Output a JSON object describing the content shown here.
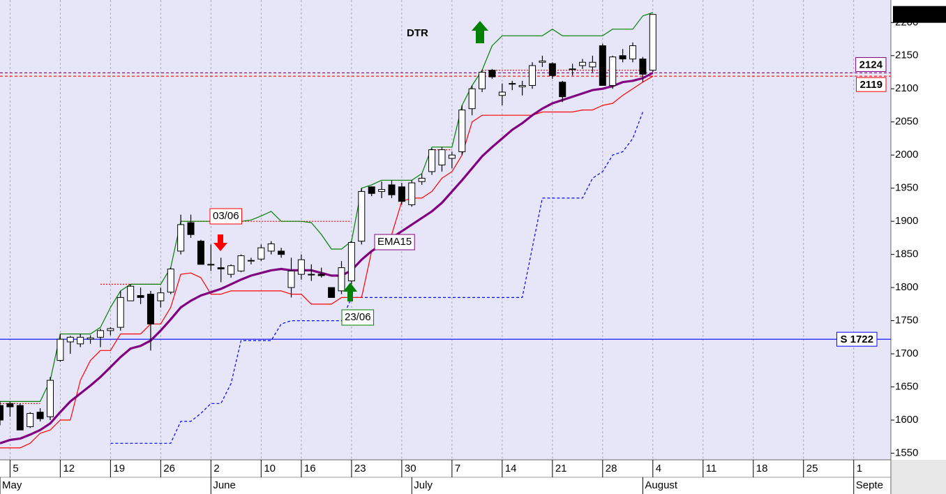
{
  "chart_data": {
    "type": "candlestick",
    "open": [
      1622,
      1625,
      1622,
      1590,
      1612,
      1605,
      1690,
      1718,
      1715,
      1722,
      1725,
      1735,
      1740,
      1780,
      1788,
      1790,
      1780,
      1793,
      1855,
      1898,
      1870,
      1835,
      1830,
      1820,
      1825,
      1840,
      1843,
      1855,
      1855,
      1800,
      1820,
      1820,
      1820,
      1800,
      1795,
      1810,
      1870,
      1952,
      1945,
      1955,
      1952,
      1925,
      1960,
      1975,
      1985,
      1995,
      2005,
      2070,
      2100,
      2128,
      2090,
      2108,
      2103,
      2105,
      2140,
      2138,
      2110,
      2130,
      2135,
      2133,
      2165,
      2105,
      2150,
      2145,
      2145,
      2128
    ],
    "high": [
      1628,
      1628,
      1625,
      1612,
      1618,
      1665,
      1730,
      1727,
      1730,
      1728,
      1738,
      1740,
      1795,
      1805,
      1800,
      1795,
      1800,
      1830,
      1910,
      1910,
      1872,
      1865,
      1845,
      1835,
      1850,
      1845,
      1865,
      1870,
      1860,
      1845,
      1850,
      1835,
      1830,
      1800,
      1840,
      1870,
      1950,
      1953,
      1960,
      1962,
      1958,
      1962,
      1972,
      2010,
      2012,
      2005,
      2075,
      2105,
      2128,
      2130,
      2108,
      2112,
      2112,
      2140,
      2150,
      2140,
      2112,
      2138,
      2145,
      2150,
      2168,
      2150,
      2160,
      2170,
      2148,
      2212.24
    ],
    "low": [
      1592,
      1605,
      1585,
      1588,
      1598,
      1600,
      1688,
      1700,
      1710,
      1715,
      1710,
      1728,
      1735,
      1780,
      1775,
      1705,
      1770,
      1790,
      1850,
      1875,
      1835,
      1825,
      1808,
      1815,
      1823,
      1835,
      1840,
      1850,
      1845,
      1785,
      1812,
      1810,
      1815,
      1785,
      1790,
      1805,
      1865,
      1938,
      1935,
      1935,
      1925,
      1922,
      1955,
      1970,
      1975,
      1980,
      2000,
      2060,
      2095,
      2115,
      2075,
      2098,
      2090,
      2100,
      2133,
      2115,
      2080,
      2120,
      2130,
      2125,
      2105,
      2100,
      2140,
      2140,
      2110,
      2125
    ],
    "close": [
      1600,
      1620,
      1585,
      1610,
      1602,
      1660,
      1722,
      1725,
      1725,
      1724,
      1735,
      1738,
      1785,
      1802,
      1785,
      1745,
      1792,
      1828,
      1895,
      1880,
      1835,
      1835,
      1828,
      1833,
      1848,
      1841,
      1860,
      1866,
      1850,
      1825,
      1842,
      1820,
      1818,
      1785,
      1830,
      1868,
      1945,
      1942,
      1948,
      1940,
      1930,
      1958,
      1965,
      2008,
      2008,
      2000,
      2068,
      2100,
      2125,
      2118,
      2095,
      2108,
      2105,
      2135,
      2142,
      2120,
      2088,
      2130,
      2140,
      2140,
      2105,
      2148,
      2145,
      2165,
      2122,
      2212.24
    ],
    "up_color": "#ffffff",
    "down_color": "#000000",
    "series": [
      {
        "color": "#0000ff",
        "style": "dashed",
        "width": 1.2,
        "values": [
          null,
          null,
          null,
          null,
          null,
          null,
          null,
          null,
          null,
          null,
          null,
          1565,
          1565,
          1565,
          1565,
          1565,
          1565,
          1565,
          1598,
          1598,
          1610,
          1625,
          1625,
          1655,
          1720,
          1720,
          1720,
          1720,
          1745,
          1750,
          1750,
          1750,
          1750,
          1750,
          1750,
          1785,
          1785,
          1785,
          1785,
          1785,
          1785,
          1785,
          1785,
          1785,
          1785,
          1785,
          1785,
          1785,
          1785,
          1785,
          1785,
          1785,
          1785,
          1860,
          1935,
          1935,
          1935,
          1935,
          1935,
          1965,
          1975,
          2000,
          2005,
          2025,
          2065,
          null
        ]
      },
      {
        "color": "#ff0000",
        "style": "dotted",
        "width": 1.2,
        "values": [
          1625,
          1625,
          1625,
          1625,
          1625,
          null,
          null,
          null,
          null,
          null,
          1805,
          1805,
          1805,
          1805,
          1805,
          1805,
          1805,
          null,
          1900,
          1900,
          1900,
          1900,
          1900,
          1900,
          1900,
          1900,
          1900,
          1900,
          1900,
          1900,
          1900,
          1900,
          1900,
          1900,
          1900,
          1900,
          null,
          null,
          null,
          null,
          null,
          null,
          null,
          2008,
          2008,
          2008,
          null,
          null,
          2128,
          2128,
          2128,
          2128,
          2128,
          2128,
          2128,
          2128,
          2128,
          2128,
          2128,
          2128,
          2128,
          2128,
          2128,
          2128,
          2128,
          null
        ]
      },
      {
        "color": "#ff0000",
        "style": "solid",
        "width": 1.2,
        "values": [
          1558,
          1558,
          1558,
          1565,
          1580,
          1585,
          1600,
          1600,
          1660,
          1690,
          1705,
          1705,
          1730,
          1730,
          1730,
          1745,
          1745,
          1770,
          1820,
          1822,
          1815,
          1790,
          1790,
          1795,
          1795,
          1795,
          1795,
          1795,
          1795,
          1790,
          1790,
          1775,
          1775,
          1775,
          1785,
          1785,
          1785,
          1855,
          1860,
          1880,
          1930,
          1935,
          1935,
          1945,
          1965,
          1975,
          2000,
          2050,
          2060,
          2060,
          2060,
          2060,
          2060,
          2060,
          2065,
          2065,
          2065,
          2065,
          2068,
          2068,
          2075,
          2078,
          2090,
          2100,
          2110,
          2119
        ]
      },
      {
        "color": "#008000",
        "style": "solid",
        "width": 1.2,
        "values": [
          1628,
          1628,
          1628,
          1628,
          1628,
          1660,
          1730,
          1730,
          1730,
          1730,
          1740,
          1770,
          1795,
          1805,
          1805,
          1805,
          1805,
          1830,
          1900,
          1900,
          1900,
          1900,
          1900,
          1900,
          1900,
          1902,
          1908,
          1915,
          1900,
          1900,
          1900,
          1898,
          1880,
          1858,
          1858,
          1870,
          1950,
          1955,
          1962,
          1962,
          1962,
          1962,
          1972,
          2012,
          2012,
          2012,
          2075,
          2105,
          2128,
          2165,
          2180,
          2180,
          2180,
          2180,
          2180,
          2190,
          2180,
          2180,
          2180,
          2180,
          2180,
          2190,
          2190,
          2190,
          2210,
          2215
        ]
      },
      {
        "color": "#800080",
        "style": "solid",
        "width": 3.2,
        "values": [
          1565,
          1570,
          1572,
          1578,
          1585,
          1595,
          1612,
          1628,
          1640,
          1652,
          1665,
          1680,
          1695,
          1708,
          1712,
          1720,
          1735,
          1752,
          1770,
          1780,
          1788,
          1793,
          1798,
          1805,
          1812,
          1818,
          1822,
          1826,
          1828,
          1826,
          1826,
          1826,
          1822,
          1818,
          1818,
          1826,
          1842,
          1855,
          1865,
          1875,
          1885,
          1895,
          1905,
          1915,
          1928,
          1945,
          1962,
          1980,
          1998,
          2012,
          2025,
          2038,
          2048,
          2060,
          2070,
          2078,
          2083,
          2088,
          2093,
          2098,
          2100,
          2104,
          2110,
          2112,
          2116,
          2124
        ]
      }
    ],
    "levels": [
      {
        "value": 2124,
        "color": "#800080",
        "style": "dashed"
      },
      {
        "value": 2119,
        "color": "#ff0000",
        "style": "dashed"
      },
      {
        "value": 1722,
        "label": "S 1722",
        "color": "#0000ff",
        "style": "solid"
      }
    ],
    "annotations": [
      {
        "text": "DTR",
        "color": "#008000"
      },
      {
        "text": "03/06",
        "color": "#ff0000"
      },
      {
        "text": "23/06",
        "color": "#008000"
      },
      {
        "text": "EMA15",
        "color": "#800080"
      }
    ],
    "xlim": [
      0,
      88.7
    ],
    "ylim": [
      1540,
      2234
    ],
    "yticks": [
      1550,
      1600,
      1650,
      1700,
      1750,
      1800,
      1850,
      1900,
      1950,
      2000,
      2050,
      2100,
      2150,
      2200
    ],
    "xticks": [
      {
        "value": 1,
        "label": "5"
      },
      {
        "value": 6,
        "label": "12"
      },
      {
        "value": 11,
        "label": "19"
      },
      {
        "value": 16,
        "label": "26"
      },
      {
        "value": 21,
        "label": "2"
      },
      {
        "value": 26,
        "label": "10"
      },
      {
        "value": 30,
        "label": "16"
      },
      {
        "value": 35,
        "label": "23"
      },
      {
        "value": 40,
        "label": "30"
      },
      {
        "value": 45,
        "label": "7"
      },
      {
        "value": 50,
        "label": "14"
      },
      {
        "value": 55,
        "label": "21"
      },
      {
        "value": 60,
        "label": "28"
      },
      {
        "value": 65,
        "label": "4"
      },
      {
        "value": 70,
        "label": "11"
      },
      {
        "value": 75,
        "label": "18"
      },
      {
        "value": 80,
        "label": "25"
      },
      {
        "value": 85,
        "label": "1"
      }
    ],
    "months": [
      {
        "value": 0,
        "label": "May"
      },
      {
        "value": 21,
        "label": "June"
      },
      {
        "value": 41,
        "label": "July"
      },
      {
        "value": 64,
        "label": "August"
      },
      {
        "value": 85,
        "label": "Septe"
      }
    ],
    "grid": true
  }
}
